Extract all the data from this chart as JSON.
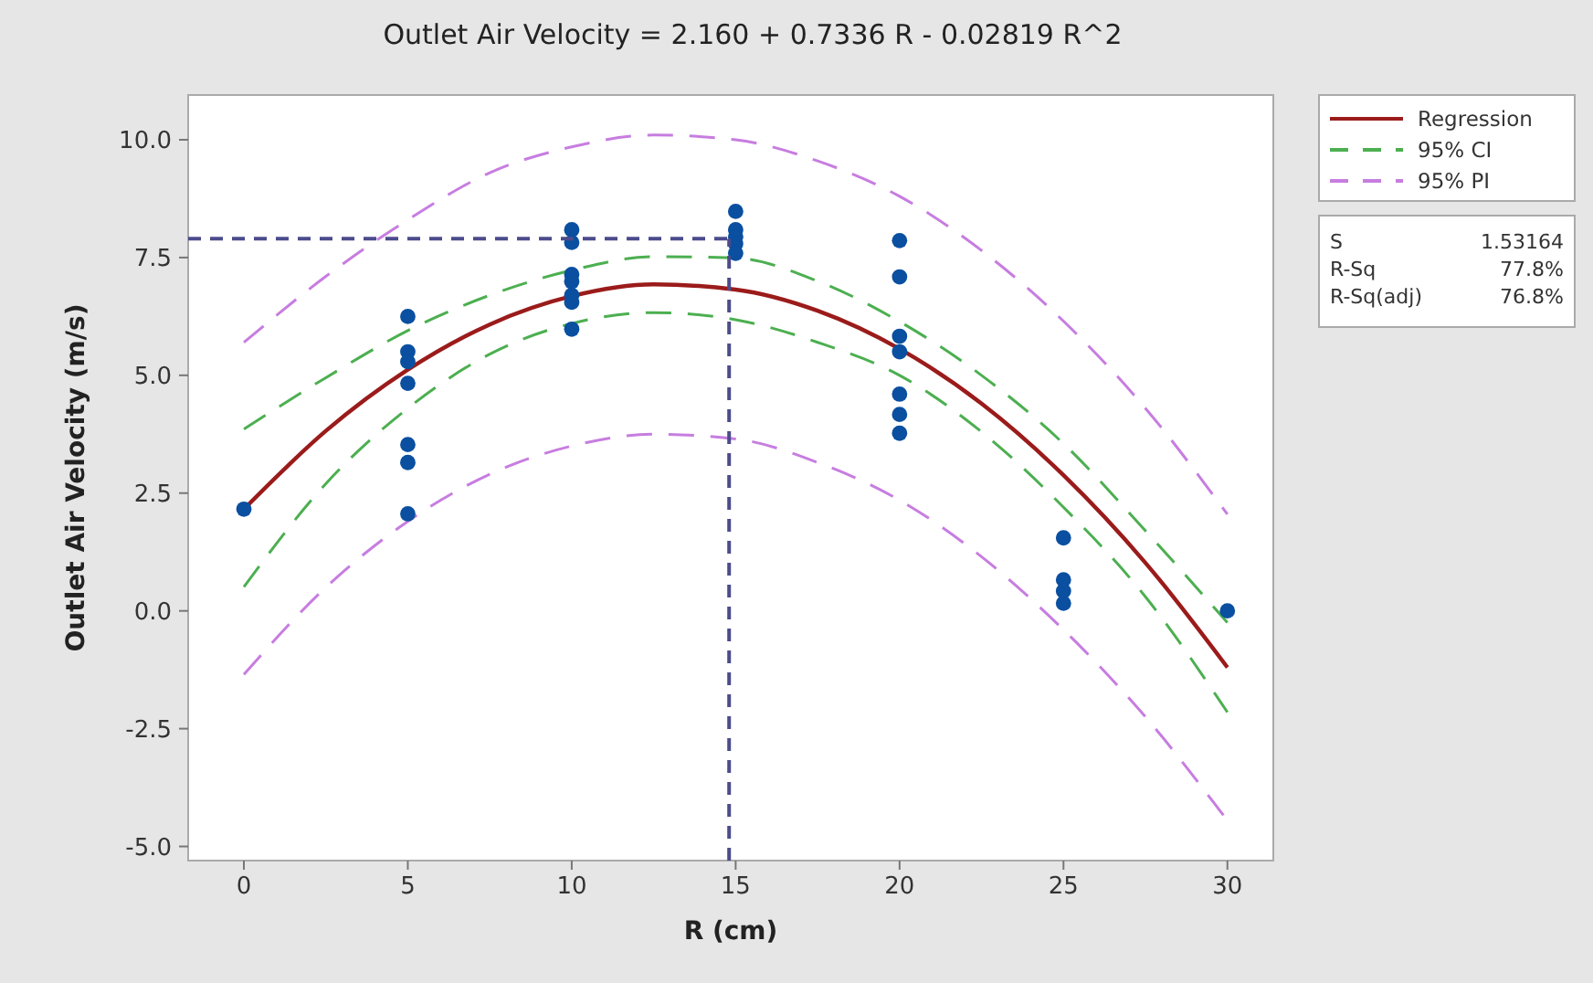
{
  "chart_data": {
    "type": "scatter",
    "title": "Outlet Air Velocity = 2.160 + 0.7336 R - 0.02819 R^2",
    "xlabel": "R (cm)",
    "ylabel": "Outlet Air Velocity (m/s)",
    "xlim": [
      -1.7,
      31.4
    ],
    "ylim": [
      -5.3,
      10.95
    ],
    "xticks": [
      0,
      5,
      10,
      15,
      20,
      25,
      30
    ],
    "yticks": [
      {
        "value": -5,
        "label": "-5.0"
      },
      {
        "value": -2.5,
        "label": "-2.5"
      },
      {
        "value": 0,
        "label": "0.0"
      },
      {
        "value": 2.5,
        "label": "2.5"
      },
      {
        "value": 5,
        "label": "5.0"
      },
      {
        "value": 7.5,
        "label": "7.5"
      },
      {
        "value": 10,
        "label": "10.0"
      }
    ],
    "grid": false,
    "legend": "right",
    "series": [
      {
        "type": "line",
        "name": "95% PI",
        "color": "#c77de0",
        "line_style": "dashed",
        "x": [
          0,
          2.5,
          5,
          7.5,
          10,
          12.5,
          15,
          17.5,
          20,
          22.5,
          25,
          27.5,
          30
        ],
        "values": [
          5.7,
          7.1,
          8.3,
          9.3,
          9.85,
          10.1,
          10.0,
          9.55,
          8.8,
          7.65,
          6.15,
          4.3,
          2.05
        ]
      },
      {
        "type": "line",
        "color": "#c77de0",
        "line_style": "dashed",
        "x": [
          0,
          2.5,
          5,
          7.5,
          10,
          12.5,
          15,
          17.5,
          20,
          22.5,
          25,
          27.5,
          30
        ],
        "values": [
          -1.35,
          0.5,
          1.9,
          2.9,
          3.5,
          3.75,
          3.65,
          3.15,
          2.35,
          1.15,
          -0.4,
          -2.25,
          -4.45
        ]
      },
      {
        "type": "line",
        "name": "95% CI",
        "color": "#4caf50",
        "line_style": "dashed",
        "x": [
          0,
          2.5,
          5,
          7.5,
          10,
          12.5,
          15,
          17.5,
          20,
          22.5,
          25,
          27.5,
          30
        ],
        "values": [
          3.86,
          4.95,
          5.95,
          6.7,
          7.23,
          7.52,
          7.49,
          7.0,
          6.14,
          5.0,
          3.55,
          1.7,
          -0.25
        ]
      },
      {
        "type": "line",
        "color": "#4caf50",
        "line_style": "dashed",
        "x": [
          0,
          2.5,
          5,
          7.5,
          10,
          12.5,
          15,
          17.5,
          20,
          22.5,
          25,
          27.5,
          30
        ],
        "values": [
          0.51,
          2.7,
          4.3,
          5.45,
          6.1,
          6.33,
          6.18,
          5.7,
          5.0,
          3.8,
          2.2,
          0.3,
          -2.15
        ]
      },
      {
        "type": "line",
        "name": "Regression",
        "color": "#9b1b1b",
        "line_style": "solid",
        "x": [
          0,
          2.5,
          5,
          7.5,
          10,
          12.5,
          15,
          17.5,
          20,
          22.5,
          25,
          27.5,
          30
        ],
        "values": [
          2.16,
          3.82,
          5.12,
          6.08,
          6.68,
          6.93,
          6.82,
          6.37,
          5.56,
          4.4,
          2.88,
          1.02,
          -1.2
        ]
      },
      {
        "color": "#0a4fa0",
        "marker": "circle",
        "x": [
          0,
          5,
          5,
          5,
          5,
          5,
          5,
          5,
          10,
          10,
          10,
          10,
          10,
          10,
          10,
          15,
          15,
          15,
          15,
          15,
          20,
          20,
          20,
          20,
          20,
          20,
          20,
          25,
          25,
          25,
          25,
          30
        ],
        "values": [
          2.16,
          6.25,
          5.5,
          5.29,
          4.83,
          3.53,
          3.15,
          2.06,
          8.09,
          7.82,
          7.14,
          6.99,
          6.7,
          6.55,
          5.98,
          8.48,
          8.09,
          7.94,
          7.79,
          7.59,
          7.86,
          7.09,
          5.83,
          5.5,
          4.6,
          4.17,
          3.77,
          1.55,
          0.66,
          0.42,
          0.16,
          0.0
        ]
      }
    ],
    "ref_lines": [
      {
        "axis": "y",
        "value": 7.9,
        "color": "#4b4b8c",
        "line_style": "dashed"
      },
      {
        "axis": "x",
        "value": 14.8,
        "color": "#4b4b8c",
        "line_style": "dashed"
      }
    ],
    "annotations": [
      "S",
      "1.53164",
      "R-Sq",
      "77.8%",
      "R-Sq(adj)",
      "76.8%"
    ]
  }
}
